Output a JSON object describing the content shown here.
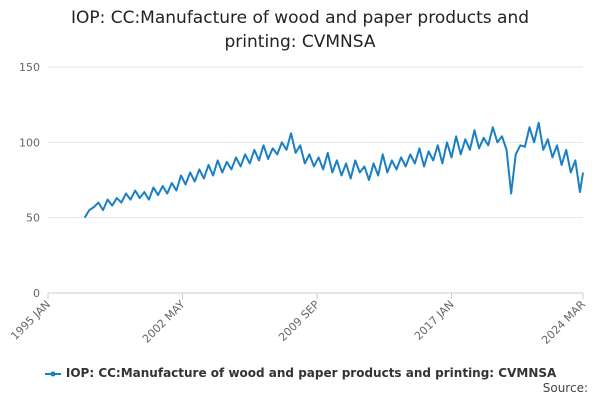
{
  "chart_data": {
    "type": "line",
    "title": "IOP: CC:Manufacture of wood and paper products and printing: CVMNSA",
    "source_label": "Source:",
    "xlim": [
      1995,
      2024.1667
    ],
    "xticks": [
      {
        "value": 1995,
        "label": "1995 JAN"
      },
      {
        "value": 2002.3333,
        "label": "2002 MAY"
      },
      {
        "value": 2009.6667,
        "label": "2009 SEP"
      },
      {
        "value": 2017,
        "label": "2017 JAN"
      },
      {
        "value": 2024.1667,
        "label": "2024 MAR"
      }
    ],
    "ylim": [
      0,
      150
    ],
    "yticks": [
      0,
      50,
      100,
      150
    ],
    "grid": true,
    "legend": "bottom",
    "x": [
      1997,
      1997.25,
      1997.5,
      1997.75,
      1998,
      1998.25,
      1998.5,
      1998.75,
      1999,
      1999.25,
      1999.5,
      1999.75,
      2000,
      2000.25,
      2000.5,
      2000.75,
      2001,
      2001.25,
      2001.5,
      2001.75,
      2002,
      2002.25,
      2002.5,
      2002.75,
      2003,
      2003.25,
      2003.5,
      2003.75,
      2004,
      2004.25,
      2004.5,
      2004.75,
      2005,
      2005.25,
      2005.5,
      2005.75,
      2006,
      2006.25,
      2006.5,
      2006.75,
      2007,
      2007.25,
      2007.5,
      2007.75,
      2008,
      2008.25,
      2008.5,
      2008.75,
      2009,
      2009.25,
      2009.5,
      2009.75,
      2010,
      2010.25,
      2010.5,
      2010.75,
      2011,
      2011.25,
      2011.5,
      2011.75,
      2012,
      2012.25,
      2012.5,
      2012.75,
      2013,
      2013.25,
      2013.5,
      2013.75,
      2014,
      2014.25,
      2014.5,
      2014.75,
      2015,
      2015.25,
      2015.5,
      2015.75,
      2016,
      2016.25,
      2016.5,
      2016.75,
      2017,
      2017.25,
      2017.5,
      2017.75,
      2018,
      2018.25,
      2018.5,
      2018.75,
      2019,
      2019.25,
      2019.5,
      2019.75,
      2020,
      2020.25,
      2020.5,
      2020.75,
      2021,
      2021.25,
      2021.5,
      2021.75,
      2022,
      2022.25,
      2022.5,
      2022.75,
      2023,
      2023.25,
      2023.5,
      2023.75,
      2024,
      2024.1667
    ],
    "series": [
      {
        "name": "IOP: CC:Manufacture of wood and paper products and printing: CVMNSA",
        "color": "#1a80c4",
        "values": [
          50,
          55,
          57,
          60,
          55,
          62,
          58,
          63,
          60,
          66,
          62,
          68,
          63,
          67,
          62,
          70,
          65,
          71,
          66,
          73,
          68,
          78,
          72,
          80,
          74,
          82,
          76,
          85,
          78,
          88,
          80,
          87,
          82,
          90,
          84,
          92,
          86,
          95,
          88,
          98,
          89,
          96,
          92,
          100,
          95,
          106,
          93,
          98,
          86,
          92,
          84,
          90,
          82,
          93,
          80,
          88,
          78,
          86,
          76,
          88,
          80,
          84,
          75,
          86,
          78,
          92,
          80,
          88,
          82,
          90,
          84,
          92,
          86,
          96,
          84,
          94,
          88,
          98,
          86,
          100,
          90,
          104,
          92,
          102,
          95,
          108,
          96,
          103,
          98,
          110,
          100,
          104,
          95,
          66,
          92,
          98,
          97,
          110,
          100,
          113,
          95,
          102,
          90,
          98,
          85,
          95,
          80,
          88,
          67,
          80
        ]
      }
    ]
  }
}
